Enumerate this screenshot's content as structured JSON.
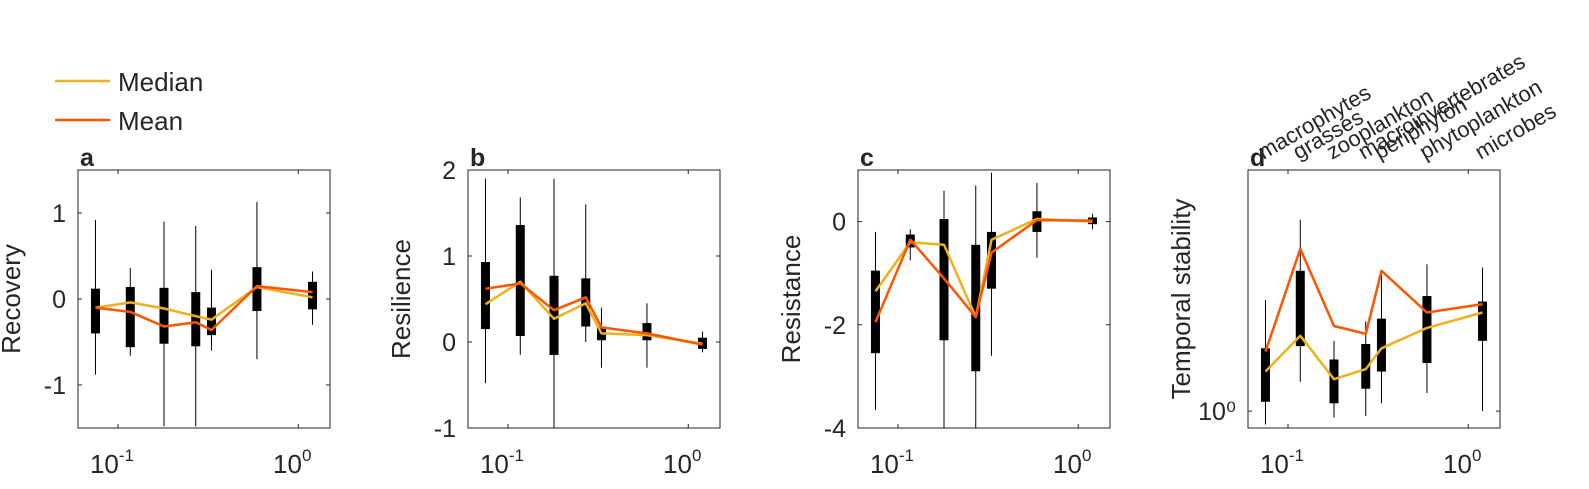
{
  "legend": {
    "entries": [
      {
        "label": "Median",
        "color": "#EDB120"
      },
      {
        "label": "Mean",
        "color": "#FF5500"
      }
    ]
  },
  "categories": [
    "macrophytes",
    "grasses",
    "zooplankton",
    "macroinvertebrates",
    "periphyton",
    "phytoplankton",
    "microbes"
  ],
  "chart_data": [
    {
      "type": "box",
      "panel_letter": "a",
      "ylabel": "Recovery",
      "xscale": "log",
      "xlim": [
        0.06,
        1.5
      ],
      "ylim": [
        -1.5,
        1.5
      ],
      "yticks": [
        -1,
        0,
        1
      ],
      "ytick_labels": [
        "-1",
        "0",
        "1"
      ],
      "xticks": [
        0.1,
        1
      ],
      "x": [
        0.075,
        0.117,
        0.18,
        0.27,
        0.33,
        0.59,
        1.2
      ],
      "boxes": [
        {
          "q1": -0.4,
          "q3": 0.12,
          "whisker_low": -0.88,
          "whisker_high": 0.92
        },
        {
          "q1": -0.56,
          "q3": 0.14,
          "whisker_low": -0.66,
          "whisker_high": 0.36
        },
        {
          "q1": -0.52,
          "q3": 0.13,
          "whisker_low": -1.48,
          "whisker_high": 0.9
        },
        {
          "q1": -0.55,
          "q3": 0.08,
          "whisker_low": -1.48,
          "whisker_high": 0.85
        },
        {
          "q1": -0.42,
          "q3": -0.1,
          "whisker_low": -0.6,
          "whisker_high": 0.34
        },
        {
          "q1": -0.14,
          "q3": 0.37,
          "whisker_low": -0.7,
          "whisker_high": 1.13
        },
        {
          "q1": -0.12,
          "q3": 0.2,
          "whisker_low": -0.3,
          "whisker_high": 0.32
        }
      ],
      "series": [
        {
          "name": "Median",
          "values": [
            -0.1,
            -0.04,
            -0.11,
            -0.2,
            -0.24,
            0.14,
            0.02
          ]
        },
        {
          "name": "Mean",
          "values": [
            -0.1,
            -0.15,
            -0.32,
            -0.27,
            -0.36,
            0.15,
            0.08
          ]
        }
      ]
    },
    {
      "type": "box",
      "panel_letter": "b",
      "ylabel": "Resilience",
      "xscale": "log",
      "xlim": [
        0.06,
        1.5
      ],
      "ylim": [
        -1,
        2
      ],
      "yticks": [
        -1,
        0,
        1,
        2
      ],
      "ytick_labels": [
        "-1",
        "0",
        "1",
        "2"
      ],
      "xticks": [
        0.1,
        1
      ],
      "x": [
        0.075,
        0.117,
        0.18,
        0.27,
        0.33,
        0.59,
        1.2
      ],
      "boxes": [
        {
          "q1": 0.15,
          "q3": 0.93,
          "whisker_low": -0.48,
          "whisker_high": 1.9
        },
        {
          "q1": 0.07,
          "q3": 1.36,
          "whisker_low": -0.15,
          "whisker_high": 1.68
        },
        {
          "q1": -0.15,
          "q3": 0.77,
          "whisker_low": -1.0,
          "whisker_high": 1.9
        },
        {
          "q1": 0.18,
          "q3": 0.74,
          "whisker_low": 0.0,
          "whisker_high": 1.6
        },
        {
          "q1": 0.02,
          "q3": 0.18,
          "whisker_low": -0.3,
          "whisker_high": 0.4
        },
        {
          "q1": 0.02,
          "q3": 0.22,
          "whisker_low": -0.3,
          "whisker_high": 0.45
        },
        {
          "q1": -0.08,
          "q3": 0.05,
          "whisker_low": -0.12,
          "whisker_high": 0.12
        }
      ],
      "series": [
        {
          "name": "Median",
          "values": [
            0.44,
            0.7,
            0.27,
            0.45,
            0.1,
            0.08,
            -0.02
          ]
        },
        {
          "name": "Mean",
          "values": [
            0.62,
            0.68,
            0.37,
            0.52,
            0.17,
            0.1,
            -0.03
          ]
        }
      ]
    },
    {
      "type": "box",
      "panel_letter": "c",
      "ylabel": "Resistance",
      "xscale": "log",
      "xlim": [
        0.06,
        1.5
      ],
      "ylim": [
        -4,
        1
      ],
      "yticks": [
        -4,
        -2,
        0
      ],
      "ytick_labels": [
        "-4",
        "-2",
        "0"
      ],
      "xticks": [
        0.1,
        1
      ],
      "x": [
        0.075,
        0.117,
        0.18,
        0.27,
        0.33,
        0.59,
        1.2
      ],
      "boxes": [
        {
          "q1": -2.55,
          "q3": -0.95,
          "whisker_low": -3.65,
          "whisker_high": -0.2
        },
        {
          "q1": -0.5,
          "q3": -0.25,
          "whisker_low": -0.75,
          "whisker_high": -0.15
        },
        {
          "q1": -2.3,
          "q3": 0.05,
          "whisker_low": -4.0,
          "whisker_high": 0.6
        },
        {
          "q1": -2.9,
          "q3": -0.45,
          "whisker_low": -4.0,
          "whisker_high": 0.7
        },
        {
          "q1": -1.3,
          "q3": -0.2,
          "whisker_low": -2.6,
          "whisker_high": 0.95
        },
        {
          "q1": -0.2,
          "q3": 0.2,
          "whisker_low": -0.7,
          "whisker_high": 0.75
        },
        {
          "q1": -0.05,
          "q3": 0.08,
          "whisker_low": -0.15,
          "whisker_high": 0.15
        }
      ],
      "series": [
        {
          "name": "Median",
          "values": [
            -1.35,
            -0.4,
            -0.45,
            -1.85,
            -0.35,
            0.05,
            0.0
          ]
        },
        {
          "name": "Mean",
          "values": [
            -1.95,
            -0.35,
            -1.1,
            -1.85,
            -0.6,
            0.03,
            0.02
          ]
        }
      ]
    },
    {
      "type": "box",
      "panel_letter": "d",
      "ylabel": "Temporal stability",
      "xscale": "log",
      "yscale": "log",
      "xlim": [
        0.06,
        1.5
      ],
      "ylim": [
        0.9,
        4.5
      ],
      "yticks": [
        1
      ],
      "ytick_labels": [
        "10⁰"
      ],
      "xticks": [
        0.1,
        1
      ],
      "x": [
        0.075,
        0.117,
        0.18,
        0.27,
        0.33,
        0.59,
        1.2
      ],
      "boxes": [
        {
          "q1": 1.06,
          "q3": 1.48,
          "whisker_low": 0.92,
          "whisker_high": 2.0
        },
        {
          "q1": 1.5,
          "q3": 2.4,
          "whisker_low": 1.2,
          "whisker_high": 3.3
        },
        {
          "q1": 1.05,
          "q3": 1.38,
          "whisker_low": 0.96,
          "whisker_high": 1.55
        },
        {
          "q1": 1.15,
          "q3": 1.52,
          "whisker_low": 0.97,
          "whisker_high": 1.75
        },
        {
          "q1": 1.28,
          "q3": 1.78,
          "whisker_low": 1.05,
          "whisker_high": 2.4
        },
        {
          "q1": 1.35,
          "q3": 2.05,
          "whisker_low": 1.12,
          "whisker_high": 2.5
        },
        {
          "q1": 1.55,
          "q3": 1.98,
          "whisker_low": 1.0,
          "whisker_high": 2.45
        }
      ],
      "series": [
        {
          "name": "Median",
          "values": [
            1.28,
            1.6,
            1.22,
            1.3,
            1.48,
            1.68,
            1.85
          ]
        },
        {
          "name": "Mean",
          "values": [
            1.45,
            2.75,
            1.7,
            1.62,
            2.4,
            1.85,
            1.95
          ]
        }
      ]
    }
  ]
}
